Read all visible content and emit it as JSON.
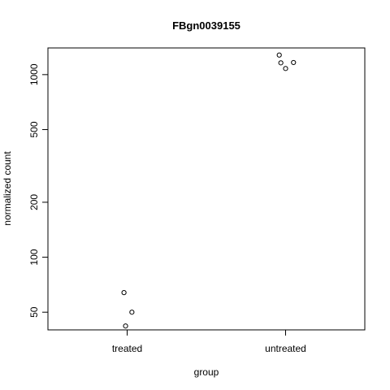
{
  "chart_data": {
    "type": "scatter",
    "title": "FBgn0039155",
    "xlabel": "group",
    "ylabel": "normalized count",
    "categories": [
      "treated",
      "untreated"
    ],
    "y_scale": "log",
    "y_ticks": [
      50,
      100,
      200,
      500,
      1000
    ],
    "ylim": [
      40,
      1400
    ],
    "points": [
      {
        "group": "treated",
        "jitter": -0.02,
        "y": 64
      },
      {
        "group": "treated",
        "jitter": 0.03,
        "y": 50
      },
      {
        "group": "treated",
        "jitter": -0.01,
        "y": 42
      },
      {
        "group": "untreated",
        "jitter": -0.04,
        "y": 1280
      },
      {
        "group": "untreated",
        "jitter": -0.03,
        "y": 1160
      },
      {
        "group": "untreated",
        "jitter": 0.05,
        "y": 1165
      },
      {
        "group": "untreated",
        "jitter": 0.0,
        "y": 1080
      }
    ],
    "grid": false,
    "legend": "none"
  }
}
